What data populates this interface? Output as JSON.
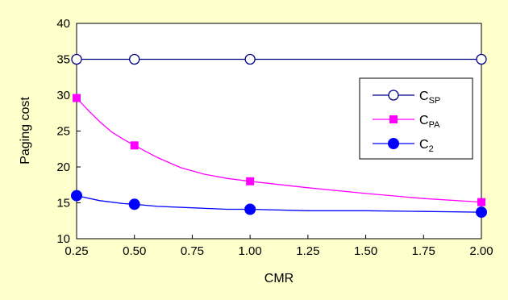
{
  "chart_data": {
    "type": "line",
    "xlabel": "CMR",
    "ylabel": "Paging cost",
    "xlim": [
      0.25,
      2.0
    ],
    "ylim": [
      10,
      40
    ],
    "x_ticks": [
      "0.25",
      "0.50",
      "0.75",
      "1.00",
      "1.25",
      "1.50",
      "1.75",
      "2.00"
    ],
    "y_ticks": [
      "10",
      "15",
      "20",
      "25",
      "30",
      "35",
      "40"
    ],
    "grid": false,
    "legend_position": "right",
    "series": [
      {
        "name_main": "C",
        "name_sub": "SP",
        "color": "#000080",
        "marker": "open-circle",
        "x": [
          0.25,
          0.5,
          1.0,
          2.0
        ],
        "y": [
          35,
          35,
          35,
          35
        ],
        "curve_x": [
          0.25,
          0.5,
          1.0,
          2.0
        ],
        "curve_y": [
          35,
          35,
          35,
          35
        ]
      },
      {
        "name_main": "C",
        "name_sub": "PA",
        "color": "#ff00ff",
        "marker": "filled-square",
        "x": [
          0.25,
          0.5,
          1.0,
          2.0
        ],
        "y": [
          29.6,
          23.0,
          18.0,
          15.1
        ],
        "curve_x": [
          0.25,
          0.3,
          0.35,
          0.4,
          0.45,
          0.5,
          0.6,
          0.7,
          0.8,
          0.9,
          1.0,
          1.25,
          1.5,
          1.75,
          2.0
        ],
        "curve_y": [
          29.6,
          27.9,
          26.3,
          24.9,
          23.9,
          23.0,
          21.3,
          19.9,
          19.0,
          18.4,
          18.0,
          17.1,
          16.3,
          15.6,
          15.1
        ]
      },
      {
        "name_main": "C",
        "name_sub": "2",
        "color": "#0000ff",
        "marker": "filled-circle",
        "x": [
          0.25,
          0.5,
          1.0,
          2.0
        ],
        "y": [
          16.0,
          14.8,
          14.1,
          13.7
        ],
        "curve_x": [
          0.25,
          0.35,
          0.45,
          0.5,
          0.6,
          0.75,
          0.9,
          1.0,
          1.25,
          1.5,
          1.75,
          2.0
        ],
        "curve_y": [
          16.0,
          15.3,
          14.9,
          14.8,
          14.5,
          14.3,
          14.1,
          14.1,
          13.9,
          13.9,
          13.8,
          13.7
        ]
      }
    ]
  }
}
